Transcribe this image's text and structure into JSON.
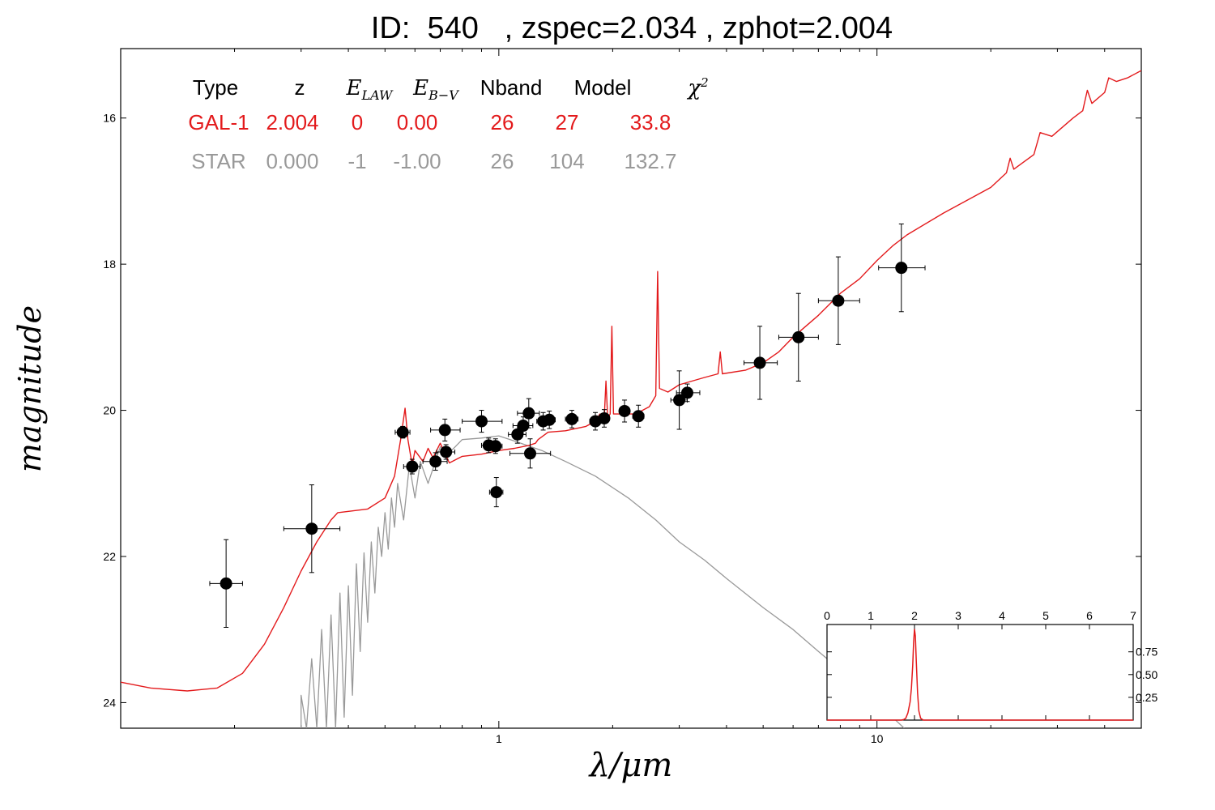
{
  "title": "ID:  540   , zspec=2.034 , zphot=2.004",
  "colors": {
    "galaxy": "#e31a1c",
    "star": "#999999",
    "points": "#000000",
    "text": "#000000"
  },
  "table": {
    "headers": [
      "Type",
      "z",
      "E_LAW",
      "E_B-V",
      "Nband",
      "Model",
      "χ²"
    ],
    "rows": [
      {
        "type": "GAL-1",
        "z": "2.004",
        "elaw": "0",
        "ebv": "0.00",
        "nband": "26",
        "model": "27",
        "chi2": "33.8"
      },
      {
        "type": "STAR",
        "z": "0.000",
        "elaw": "-1",
        "ebv": "-1.00",
        "nband": "26",
        "model": "104",
        "chi2": "132.7"
      }
    ]
  },
  "chart_data": [
    {
      "type": "scatter",
      "xlabel": "λ/μm",
      "ylabel": "magnitude",
      "xscale": "log",
      "xlim": [
        0.1,
        50
      ],
      "ylim": [
        24.35,
        15.05
      ],
      "yinvert": true,
      "xticks": [
        1,
        10
      ],
      "yticks": [
        16,
        18,
        20,
        22,
        24
      ],
      "photometry": [
        {
          "x": 0.19,
          "y": 22.37,
          "xerr": [
            0.018,
            0.02
          ],
          "yerr": 0.6
        },
        {
          "x": 0.32,
          "y": 21.62,
          "xerr": [
            0.05,
            0.06
          ],
          "yerr": 0.6
        },
        {
          "x": 0.557,
          "y": 20.3,
          "xerr": [
            0.025,
            0.025
          ],
          "yerr": 0.08
        },
        {
          "x": 0.59,
          "y": 20.77,
          "xerr": [
            0.03,
            0.03
          ],
          "yerr": 0.1
        },
        {
          "x": 0.68,
          "y": 20.7,
          "xerr": [
            0.05,
            0.05
          ],
          "yerr": 0.12
        },
        {
          "x": 0.725,
          "y": 20.57,
          "xerr": [
            0.04,
            0.04
          ],
          "yerr": 0.1
        },
        {
          "x": 0.72,
          "y": 20.27,
          "xerr": [
            0.06,
            0.07
          ],
          "yerr": 0.15
        },
        {
          "x": 0.9,
          "y": 20.15,
          "xerr": [
            0.1,
            0.12
          ],
          "yerr": 0.15
        },
        {
          "x": 0.94,
          "y": 20.48,
          "xerr": [
            0.04,
            0.04
          ],
          "yerr": 0.1
        },
        {
          "x": 0.98,
          "y": 20.49,
          "xerr": [
            0.04,
            0.04
          ],
          "yerr": 0.1
        },
        {
          "x": 0.985,
          "y": 21.12,
          "xerr": [
            0.04,
            0.04
          ],
          "yerr": 0.2
        },
        {
          "x": 1.12,
          "y": 20.33,
          "xerr": [
            0.06,
            0.06
          ],
          "yerr": 0.12
        },
        {
          "x": 1.16,
          "y": 20.21,
          "xerr": [
            0.07,
            0.07
          ],
          "yerr": 0.12
        },
        {
          "x": 1.2,
          "y": 20.04,
          "xerr": [
            0.08,
            0.08
          ],
          "yerr": 0.2
        },
        {
          "x": 1.21,
          "y": 20.59,
          "xerr": [
            0.14,
            0.16
          ],
          "yerr": 0.2
        },
        {
          "x": 1.31,
          "y": 20.15,
          "xerr": [
            0.05,
            0.05
          ],
          "yerr": 0.12
        },
        {
          "x": 1.36,
          "y": 20.13,
          "xerr": [
            0.05,
            0.05
          ],
          "yerr": 0.12
        },
        {
          "x": 1.56,
          "y": 20.12,
          "xerr": [
            0.06,
            0.06
          ],
          "yerr": 0.12
        },
        {
          "x": 1.8,
          "y": 20.15,
          "xerr": [
            0.06,
            0.06
          ],
          "yerr": 0.12
        },
        {
          "x": 1.9,
          "y": 20.11,
          "xerr": [
            0.06,
            0.06
          ],
          "yerr": 0.12
        },
        {
          "x": 2.15,
          "y": 20.01,
          "xerr": [
            0.06,
            0.06
          ],
          "yerr": 0.15
        },
        {
          "x": 2.34,
          "y": 20.08,
          "xerr": [
            0.08,
            0.08
          ],
          "yerr": 0.15
        },
        {
          "x": 3.0,
          "y": 19.86,
          "xerr": [
            0.15,
            0.15
          ],
          "yerr": 0.4
        },
        {
          "x": 3.15,
          "y": 19.76,
          "xerr": [
            0.2,
            0.25
          ],
          "yerr": 0.12
        },
        {
          "x": 4.9,
          "y": 19.35,
          "xerr": [
            0.45,
            0.55
          ],
          "yerr": 0.5
        },
        {
          "x": 6.2,
          "y": 19.0,
          "xerr": [
            0.7,
            0.8
          ],
          "yerr": 0.6
        },
        {
          "x": 7.9,
          "y": 18.5,
          "xerr": [
            0.9,
            1.1
          ],
          "yerr": 0.6
        },
        {
          "x": 11.6,
          "y": 18.05,
          "xerr": [
            1.5,
            1.8
          ],
          "yerr": 0.6
        }
      ],
      "galaxy_model": {
        "name": "GAL-1",
        "points": [
          [
            0.1,
            23.72
          ],
          [
            0.12,
            23.8
          ],
          [
            0.15,
            23.84
          ],
          [
            0.18,
            23.8
          ],
          [
            0.21,
            23.6
          ],
          [
            0.24,
            23.2
          ],
          [
            0.27,
            22.7
          ],
          [
            0.3,
            22.2
          ],
          [
            0.33,
            21.8
          ],
          [
            0.36,
            21.5
          ],
          [
            0.375,
            21.4
          ],
          [
            0.45,
            21.35
          ],
          [
            0.5,
            21.2
          ],
          [
            0.53,
            20.9
          ],
          [
            0.55,
            20.4
          ],
          [
            0.565,
            19.97
          ],
          [
            0.575,
            20.4
          ],
          [
            0.59,
            20.75
          ],
          [
            0.6,
            20.55
          ],
          [
            0.63,
            20.7
          ],
          [
            0.65,
            20.52
          ],
          [
            0.67,
            20.65
          ],
          [
            0.7,
            20.45
          ],
          [
            0.74,
            20.72
          ],
          [
            0.8,
            20.63
          ],
          [
            0.9,
            20.6
          ],
          [
            1.0,
            20.55
          ],
          [
            1.1,
            20.52
          ],
          [
            1.2,
            20.48
          ],
          [
            1.25,
            20.45
          ],
          [
            1.27,
            20.4
          ],
          [
            1.35,
            20.3
          ],
          [
            1.5,
            20.28
          ],
          [
            1.7,
            20.22
          ],
          [
            1.8,
            20.15
          ],
          [
            1.85,
            20.05
          ],
          [
            1.9,
            20.1
          ],
          [
            1.92,
            19.6
          ],
          [
            1.94,
            20.1
          ],
          [
            1.97,
            20.05
          ],
          [
            1.99,
            18.85
          ],
          [
            2.01,
            20.05
          ],
          [
            2.1,
            20.05
          ],
          [
            2.3,
            20.05
          ],
          [
            2.5,
            19.95
          ],
          [
            2.6,
            19.8
          ],
          [
            2.63,
            18.1
          ],
          [
            2.66,
            19.7
          ],
          [
            2.8,
            19.75
          ],
          [
            3.0,
            19.65
          ],
          [
            3.5,
            19.55
          ],
          [
            3.8,
            19.5
          ],
          [
            3.85,
            19.2
          ],
          [
            3.9,
            19.5
          ],
          [
            4.5,
            19.45
          ],
          [
            5.0,
            19.35
          ],
          [
            5.5,
            19.2
          ],
          [
            6.0,
            19.0
          ],
          [
            7.0,
            18.7
          ],
          [
            8.0,
            18.4
          ],
          [
            9.0,
            18.2
          ],
          [
            10.0,
            17.95
          ],
          [
            11.0,
            17.75
          ],
          [
            12.0,
            17.6
          ],
          [
            15.0,
            17.3
          ],
          [
            20.0,
            16.95
          ],
          [
            22.0,
            16.75
          ],
          [
            22.5,
            16.55
          ],
          [
            23.0,
            16.7
          ],
          [
            26.0,
            16.5
          ],
          [
            27.0,
            16.2
          ],
          [
            29.0,
            16.25
          ],
          [
            33.0,
            16.0
          ],
          [
            35.0,
            15.9
          ],
          [
            36.0,
            15.62
          ],
          [
            37.0,
            15.8
          ],
          [
            40.0,
            15.65
          ],
          [
            41.0,
            15.45
          ],
          [
            43.0,
            15.5
          ],
          [
            46.0,
            15.45
          ],
          [
            50.0,
            15.35
          ]
        ]
      },
      "star_model": {
        "name": "STAR",
        "points": [
          [
            0.3,
            24.35
          ],
          [
            0.3,
            23.9
          ],
          [
            0.31,
            24.35
          ],
          [
            0.32,
            23.4
          ],
          [
            0.33,
            24.35
          ],
          [
            0.34,
            23.0
          ],
          [
            0.35,
            24.35
          ],
          [
            0.36,
            22.8
          ],
          [
            0.37,
            24.35
          ],
          [
            0.38,
            22.5
          ],
          [
            0.39,
            24.2
          ],
          [
            0.4,
            22.4
          ],
          [
            0.41,
            23.9
          ],
          [
            0.42,
            22.1
          ],
          [
            0.43,
            23.3
          ],
          [
            0.44,
            21.95
          ],
          [
            0.45,
            22.9
          ],
          [
            0.46,
            21.8
          ],
          [
            0.47,
            22.5
          ],
          [
            0.48,
            21.6
          ],
          [
            0.49,
            22.0
          ],
          [
            0.5,
            21.4
          ],
          [
            0.51,
            21.9
          ],
          [
            0.52,
            21.2
          ],
          [
            0.53,
            21.6
          ],
          [
            0.54,
            21.0
          ],
          [
            0.56,
            21.5
          ],
          [
            0.58,
            20.75
          ],
          [
            0.6,
            21.2
          ],
          [
            0.62,
            20.7
          ],
          [
            0.65,
            21.0
          ],
          [
            0.7,
            20.5
          ],
          [
            0.75,
            20.55
          ],
          [
            0.8,
            20.4
          ],
          [
            0.9,
            20.38
          ],
          [
            1.0,
            20.35
          ],
          [
            1.1,
            20.42
          ],
          [
            1.3,
            20.55
          ],
          [
            1.5,
            20.7
          ],
          [
            1.8,
            20.9
          ],
          [
            2.2,
            21.2
          ],
          [
            2.6,
            21.5
          ],
          [
            3.0,
            21.8
          ],
          [
            3.5,
            22.05
          ],
          [
            4.0,
            22.3
          ],
          [
            5.0,
            22.7
          ],
          [
            6.0,
            23.0
          ],
          [
            7.0,
            23.3
          ],
          [
            8.0,
            23.55
          ],
          [
            9.0,
            23.8
          ],
          [
            10.0,
            24.0
          ],
          [
            11.0,
            24.2
          ],
          [
            11.8,
            24.35
          ]
        ]
      }
    },
    {
      "type": "line",
      "name": "redshift PDF inset",
      "xlim": [
        0,
        7
      ],
      "ylim": [
        0,
        1.05
      ],
      "xticks": [
        0,
        1,
        2,
        3,
        4,
        5,
        6,
        7
      ],
      "yticks": [
        0.25,
        0.5,
        0.75
      ],
      "yticklabels": [
        "0.25",
        "0.50",
        "0.75"
      ],
      "points": [
        [
          0,
          0
        ],
        [
          1.7,
          0
        ],
        [
          1.75,
          0.005
        ],
        [
          1.8,
          0.02
        ],
        [
          1.85,
          0.08
        ],
        [
          1.9,
          0.2
        ],
        [
          1.93,
          0.35
        ],
        [
          1.96,
          0.6
        ],
        [
          1.98,
          0.85
        ],
        [
          2.0,
          1.0
        ],
        [
          2.02,
          0.92
        ],
        [
          2.04,
          0.65
        ],
        [
          2.07,
          0.3
        ],
        [
          2.1,
          0.1
        ],
        [
          2.14,
          0.02
        ],
        [
          2.2,
          0
        ],
        [
          7,
          0
        ]
      ]
    }
  ]
}
